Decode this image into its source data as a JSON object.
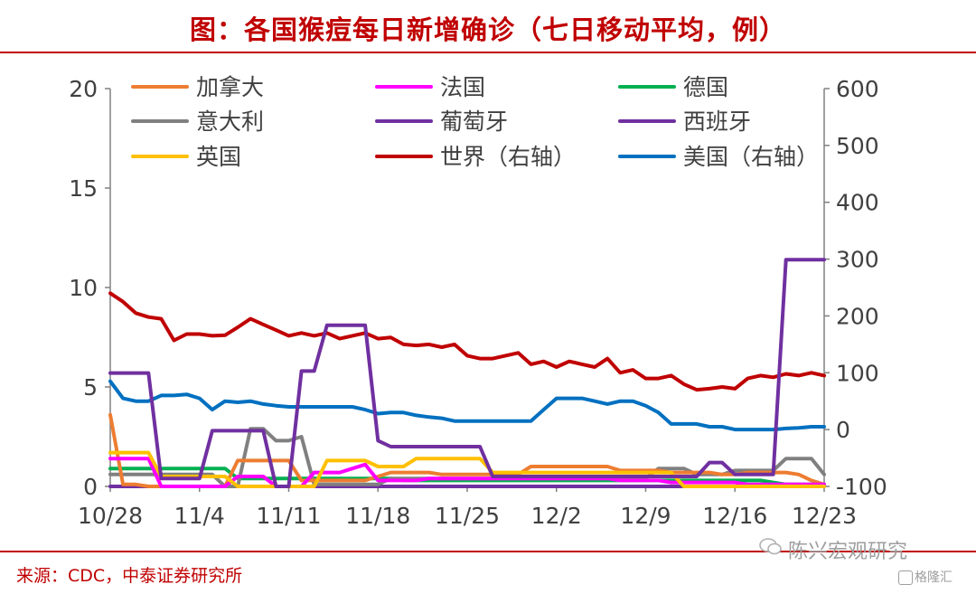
{
  "header": {
    "title": "图：各国猴痘每日新增确诊（七日移动平均，例）"
  },
  "footer": {
    "source": "来源：CDC，中泰证券研究所",
    "watermark": "陈兴宏观研究",
    "logo_text": "格隆汇"
  },
  "colors": {
    "accent": "#c00000",
    "axis": "#808080",
    "text": "#404040"
  },
  "chart_data": {
    "type": "line",
    "title": "图：各国猴痘每日新增确诊（七日移动平均，例）",
    "x": [
      "10/28",
      "10/29",
      "10/30",
      "10/31",
      "11/1",
      "11/2",
      "11/3",
      "11/4",
      "11/5",
      "11/6",
      "11/7",
      "11/8",
      "11/9",
      "11/10",
      "11/11",
      "11/12",
      "11/13",
      "11/14",
      "11/15",
      "11/16",
      "11/17",
      "11/18",
      "11/19",
      "11/20",
      "11/21",
      "11/22",
      "11/23",
      "11/24",
      "11/25",
      "11/26",
      "11/27",
      "11/28",
      "11/29",
      "11/30",
      "12/1",
      "12/2",
      "12/3",
      "12/4",
      "12/5",
      "12/6",
      "12/7",
      "12/8",
      "12/9",
      "12/10",
      "12/11",
      "12/12",
      "12/13",
      "12/14",
      "12/15",
      "12/16",
      "12/17",
      "12/18",
      "12/19",
      "12/20",
      "12/21",
      "12/22",
      "12/23"
    ],
    "xticks": [
      "10/28",
      "11/4",
      "11/11",
      "11/18",
      "11/25",
      "12/2",
      "12/9",
      "12/16",
      "12/23"
    ],
    "ylim_left": [
      0,
      20
    ],
    "yticks_left": [
      0,
      5,
      10,
      15,
      20
    ],
    "ylim_right": [
      -100,
      600
    ],
    "yticks_right": [
      -100,
      0,
      100,
      200,
      300,
      400,
      500,
      600
    ],
    "legend_position": "top",
    "series": [
      {
        "name": "加拿大",
        "axis": "left",
        "color": "#ed7d31",
        "values": [
          3.6,
          0.1,
          0.1,
          0,
          0,
          0,
          0,
          0,
          0,
          0,
          1.3,
          1.3,
          1.3,
          1.3,
          1.3,
          0.3,
          0.3,
          0.3,
          0.3,
          0.3,
          0.3,
          0.5,
          0.7,
          0.7,
          0.7,
          0.7,
          0.6,
          0.6,
          0.6,
          0.6,
          0.6,
          0.6,
          0.6,
          1,
          1,
          1,
          1,
          1,
          1,
          1,
          0.8,
          0.8,
          0.8,
          0.8,
          0.7,
          0.7,
          0.7,
          0.7,
          0.6,
          0.6,
          0.7,
          0.7,
          0.7,
          0.7,
          0.6,
          0.3,
          0.1
        ]
      },
      {
        "name": "法国",
        "axis": "left",
        "color": "#ff00ff",
        "values": [
          1.4,
          1.4,
          1.4,
          1.4,
          0,
          0,
          0,
          0,
          0,
          0,
          0.5,
          0.5,
          0.5,
          0,
          0,
          0,
          0.7,
          0.7,
          0.7,
          0.9,
          1.1,
          0.3,
          0.3,
          0.3,
          0.3,
          0.4,
          0.4,
          0.4,
          0.4,
          0.4,
          0.4,
          0.4,
          0.4,
          0.4,
          0.4,
          0.4,
          0.4,
          0.4,
          0.4,
          0.4,
          0.3,
          0.3,
          0.3,
          0.3,
          0.2,
          0.2,
          0.2,
          0.2,
          0.2,
          0.2,
          0.1,
          0.1,
          0.1,
          0.1,
          0.1,
          0.1,
          0.1
        ]
      },
      {
        "name": "德国",
        "axis": "left",
        "color": "#00b050",
        "values": [
          0.9,
          0.9,
          0.9,
          0.9,
          0.9,
          0.9,
          0.9,
          0.9,
          0.9,
          0.9,
          0.4,
          0.4,
          0.4,
          0.4,
          0.4,
          0.4,
          0.4,
          0.4,
          0.4,
          0.4,
          0.4,
          0.4,
          0.4,
          0.3,
          0.3,
          0.3,
          0.3,
          0.3,
          0.3,
          0.3,
          0.3,
          0.3,
          0.3,
          0.3,
          0.3,
          0.3,
          0.3,
          0.3,
          0.3,
          0.3,
          0.3,
          0.3,
          0.3,
          0.3,
          0.3,
          0.3,
          0.3,
          0.3,
          0.3,
          0.3,
          0.3,
          0.3,
          0.2,
          0.1,
          0.1,
          0.1,
          0.1
        ]
      },
      {
        "name": "意大利",
        "axis": "left",
        "color": "#808080",
        "values": [
          0.6,
          0.6,
          0.6,
          0.6,
          0.6,
          0.6,
          0.6,
          0.6,
          0.6,
          0,
          0,
          2.9,
          2.9,
          2.3,
          2.3,
          2.5,
          0.1,
          0.1,
          0.1,
          0.1,
          0.1,
          0.1,
          0.4,
          0.4,
          0.4,
          0.4,
          0.4,
          0.4,
          0.4,
          0.4,
          0.4,
          0.4,
          0.4,
          0.4,
          0.4,
          0.4,
          0.4,
          0.4,
          0.4,
          0.4,
          0.4,
          0.4,
          0.4,
          0.9,
          0.9,
          0.9,
          0.6,
          0.6,
          0.6,
          0.8,
          0.8,
          0.8,
          0.8,
          1.4,
          1.4,
          1.4,
          0.6
        ]
      },
      {
        "name": "葡萄牙",
        "axis": "left",
        "color": "#7030a0",
        "values": [
          0,
          0,
          0,
          0,
          0,
          0,
          0,
          0,
          0,
          0,
          0,
          0,
          0,
          0,
          0,
          0,
          0,
          0,
          0,
          0,
          0,
          0,
          0,
          0,
          0,
          0,
          0,
          0,
          0,
          0,
          0,
          0,
          0,
          0,
          0,
          0,
          0,
          0,
          0,
          0,
          0,
          0,
          0,
          0,
          0,
          0,
          0,
          0,
          0,
          0,
          0,
          0,
          0,
          0,
          0,
          0,
          0
        ]
      },
      {
        "name": "西班牙",
        "axis": "left",
        "color": "#7030a0",
        "values": [
          5.7,
          5.7,
          5.7,
          5.7,
          0.4,
          0.4,
          0.4,
          0.4,
          2.8,
          2.8,
          2.8,
          2.8,
          2.8,
          0,
          0,
          5.8,
          5.8,
          8.1,
          8.1,
          8.1,
          8.1,
          2.3,
          2.0,
          2.0,
          2.0,
          2.0,
          2.0,
          2.0,
          2.0,
          2.0,
          0.5,
          0.5,
          0.5,
          0.5,
          0.5,
          0.5,
          0.5,
          0.5,
          0.5,
          0.5,
          0.5,
          0.5,
          0.5,
          0.5,
          0.5,
          0.5,
          0.5,
          1.2,
          1.2,
          0.6,
          0.6,
          0.6,
          0.6,
          11.4,
          11.4,
          11.4,
          11.4
        ]
      },
      {
        "name": "英国",
        "axis": "left",
        "color": "#ffc000",
        "values": [
          1.7,
          1.7,
          1.7,
          1.7,
          0.5,
          0.5,
          0.5,
          0.5,
          0.5,
          0.5,
          0,
          0,
          0,
          0,
          0,
          0,
          0,
          1.3,
          1.3,
          1.3,
          1.3,
          1.0,
          1.0,
          1.0,
          1.4,
          1.4,
          1.4,
          1.4,
          1.4,
          1.4,
          0.7,
          0.7,
          0.7,
          0.7,
          0.7,
          0.7,
          0.7,
          0.7,
          0.7,
          0.7,
          0.7,
          0.7,
          0.7,
          0.7,
          0.7,
          0,
          0,
          0,
          0,
          0,
          0,
          0,
          0,
          0,
          0,
          0,
          0
        ]
      },
      {
        "name": "世界（右轴）",
        "axis": "right",
        "color": "#c00000",
        "values": [
          240,
          225,
          205,
          198,
          195,
          157,
          168,
          168,
          165,
          166,
          180,
          195,
          185,
          175,
          165,
          170,
          165,
          170,
          160,
          165,
          170,
          160,
          162,
          150,
          148,
          150,
          145,
          150,
          130,
          125,
          125,
          130,
          135,
          115,
          120,
          110,
          120,
          115,
          110,
          125,
          100,
          105,
          90,
          90,
          95,
          80,
          70,
          72,
          75,
          72,
          90,
          95,
          92,
          98,
          95,
          100,
          95
        ]
      },
      {
        "name": "美国（右轴）",
        "axis": "right",
        "color": "#0070c0",
        "values": [
          85,
          55,
          50,
          50,
          60,
          60,
          62,
          55,
          35,
          50,
          48,
          50,
          45,
          42,
          40,
          40,
          40,
          40,
          40,
          40,
          35,
          28,
          30,
          30,
          25,
          22,
          20,
          15,
          15,
          15,
          15,
          15,
          15,
          15,
          35,
          55,
          55,
          55,
          50,
          45,
          50,
          50,
          42,
          30,
          10,
          10,
          10,
          5,
          5,
          0,
          0,
          0,
          0,
          2,
          3,
          5,
          5
        ]
      }
    ]
  }
}
